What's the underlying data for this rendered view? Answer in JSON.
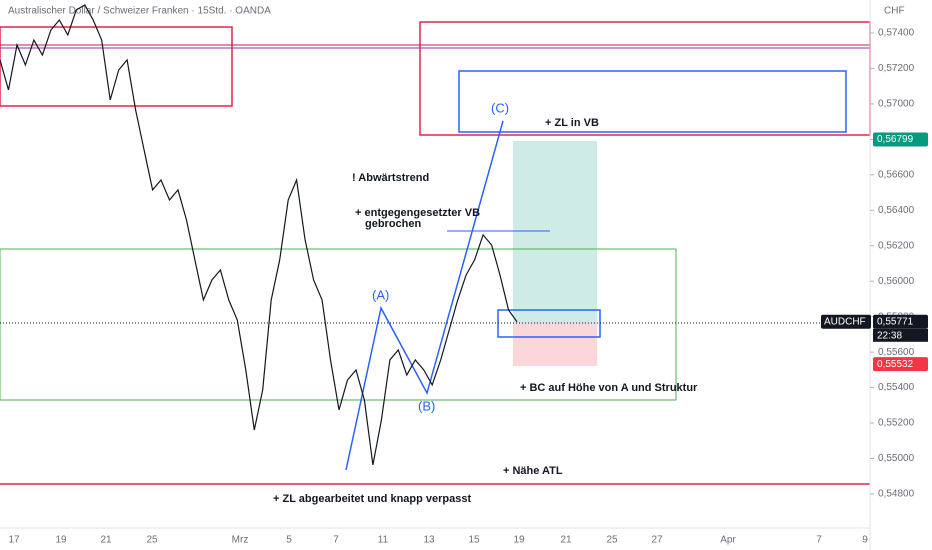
{
  "chart_data": {
    "type": "line",
    "title": "Australischer Dollar / Schweizer Franken · 15Std. · OANDA",
    "currency": "CHF",
    "series": [
      {
        "name": "AUDCHF",
        "color": "#131722",
        "values": [
          0.57248,
          0.57079,
          0.57332,
          0.5722,
          0.5736,
          0.57276,
          0.57417,
          0.57473,
          0.57389,
          0.5753,
          0.57558,
          0.57473,
          0.5736,
          0.57022,
          0.57191,
          0.57248,
          0.56966,
          0.5674,
          0.56515,
          0.56571,
          0.56458,
          0.56515,
          0.56345,
          0.5612,
          0.55894,
          0.56007,
          0.56063,
          0.55894,
          0.55781,
          0.55499,
          0.55161,
          0.55387,
          0.55894,
          0.5612,
          0.56458,
          0.56571,
          0.56233,
          0.56007,
          0.55894,
          0.55556,
          0.55274,
          0.55443,
          0.55499,
          0.5533,
          0.54964,
          0.55217,
          0.55556,
          0.55612,
          0.55471,
          0.55556,
          0.55499,
          0.55415,
          0.55556,
          0.55725,
          0.55894,
          0.56035,
          0.5612,
          0.56261,
          0.56204,
          0.56035,
          0.55838,
          0.55771
        ]
      }
    ],
    "ylim": [
      0.54608,
      0.57586
    ],
    "yticks": [
      {
        "value": 0.548,
        "label": "0,54800"
      },
      {
        "value": 0.55,
        "label": "0,55000"
      },
      {
        "value": 0.552,
        "label": "0,55200"
      },
      {
        "value": 0.554,
        "label": "0,55400"
      },
      {
        "value": 0.556,
        "label": "0,55600"
      },
      {
        "value": 0.558,
        "label": "0,55800"
      },
      {
        "value": 0.56,
        "label": "0,56000"
      },
      {
        "value": 0.562,
        "label": "0,56200"
      },
      {
        "value": 0.564,
        "label": "0,56400"
      },
      {
        "value": 0.566,
        "label": "0,56600"
      },
      {
        "value": 0.568,
        "label": "0,56800"
      },
      {
        "value": 0.57,
        "label": "0,57000"
      },
      {
        "value": 0.572,
        "label": "0,57200"
      },
      {
        "value": 0.574,
        "label": "0,57400"
      }
    ],
    "xlabels": [
      "17",
      "19",
      "21",
      "25",
      "Mrz",
      "5",
      "7",
      "11",
      "13",
      "15",
      "19",
      "21",
      "25",
      "27",
      "Apr",
      "7",
      "9"
    ],
    "price_markers": [
      {
        "value": 0.56799,
        "label": "0,56799",
        "color": "#089981"
      },
      {
        "value": 0.55771,
        "label": "0,55771",
        "name": "AUDCHF",
        "countdown": "22:38",
        "color": "#131722"
      },
      {
        "value": 0.55532,
        "label": "0,55532",
        "color": "#f23645"
      }
    ],
    "annotations": [
      "! Abwärtstrend",
      "+ entgegengesetzter VB",
      "gebrochen",
      "+ ZL in VB",
      "(C)",
      "(A)",
      "(B)",
      "+ BC auf Höhe von A und Struktur",
      "+ Nähe ATL",
      "+ ZL abgearbeitet und knapp verpasst"
    ]
  }
}
